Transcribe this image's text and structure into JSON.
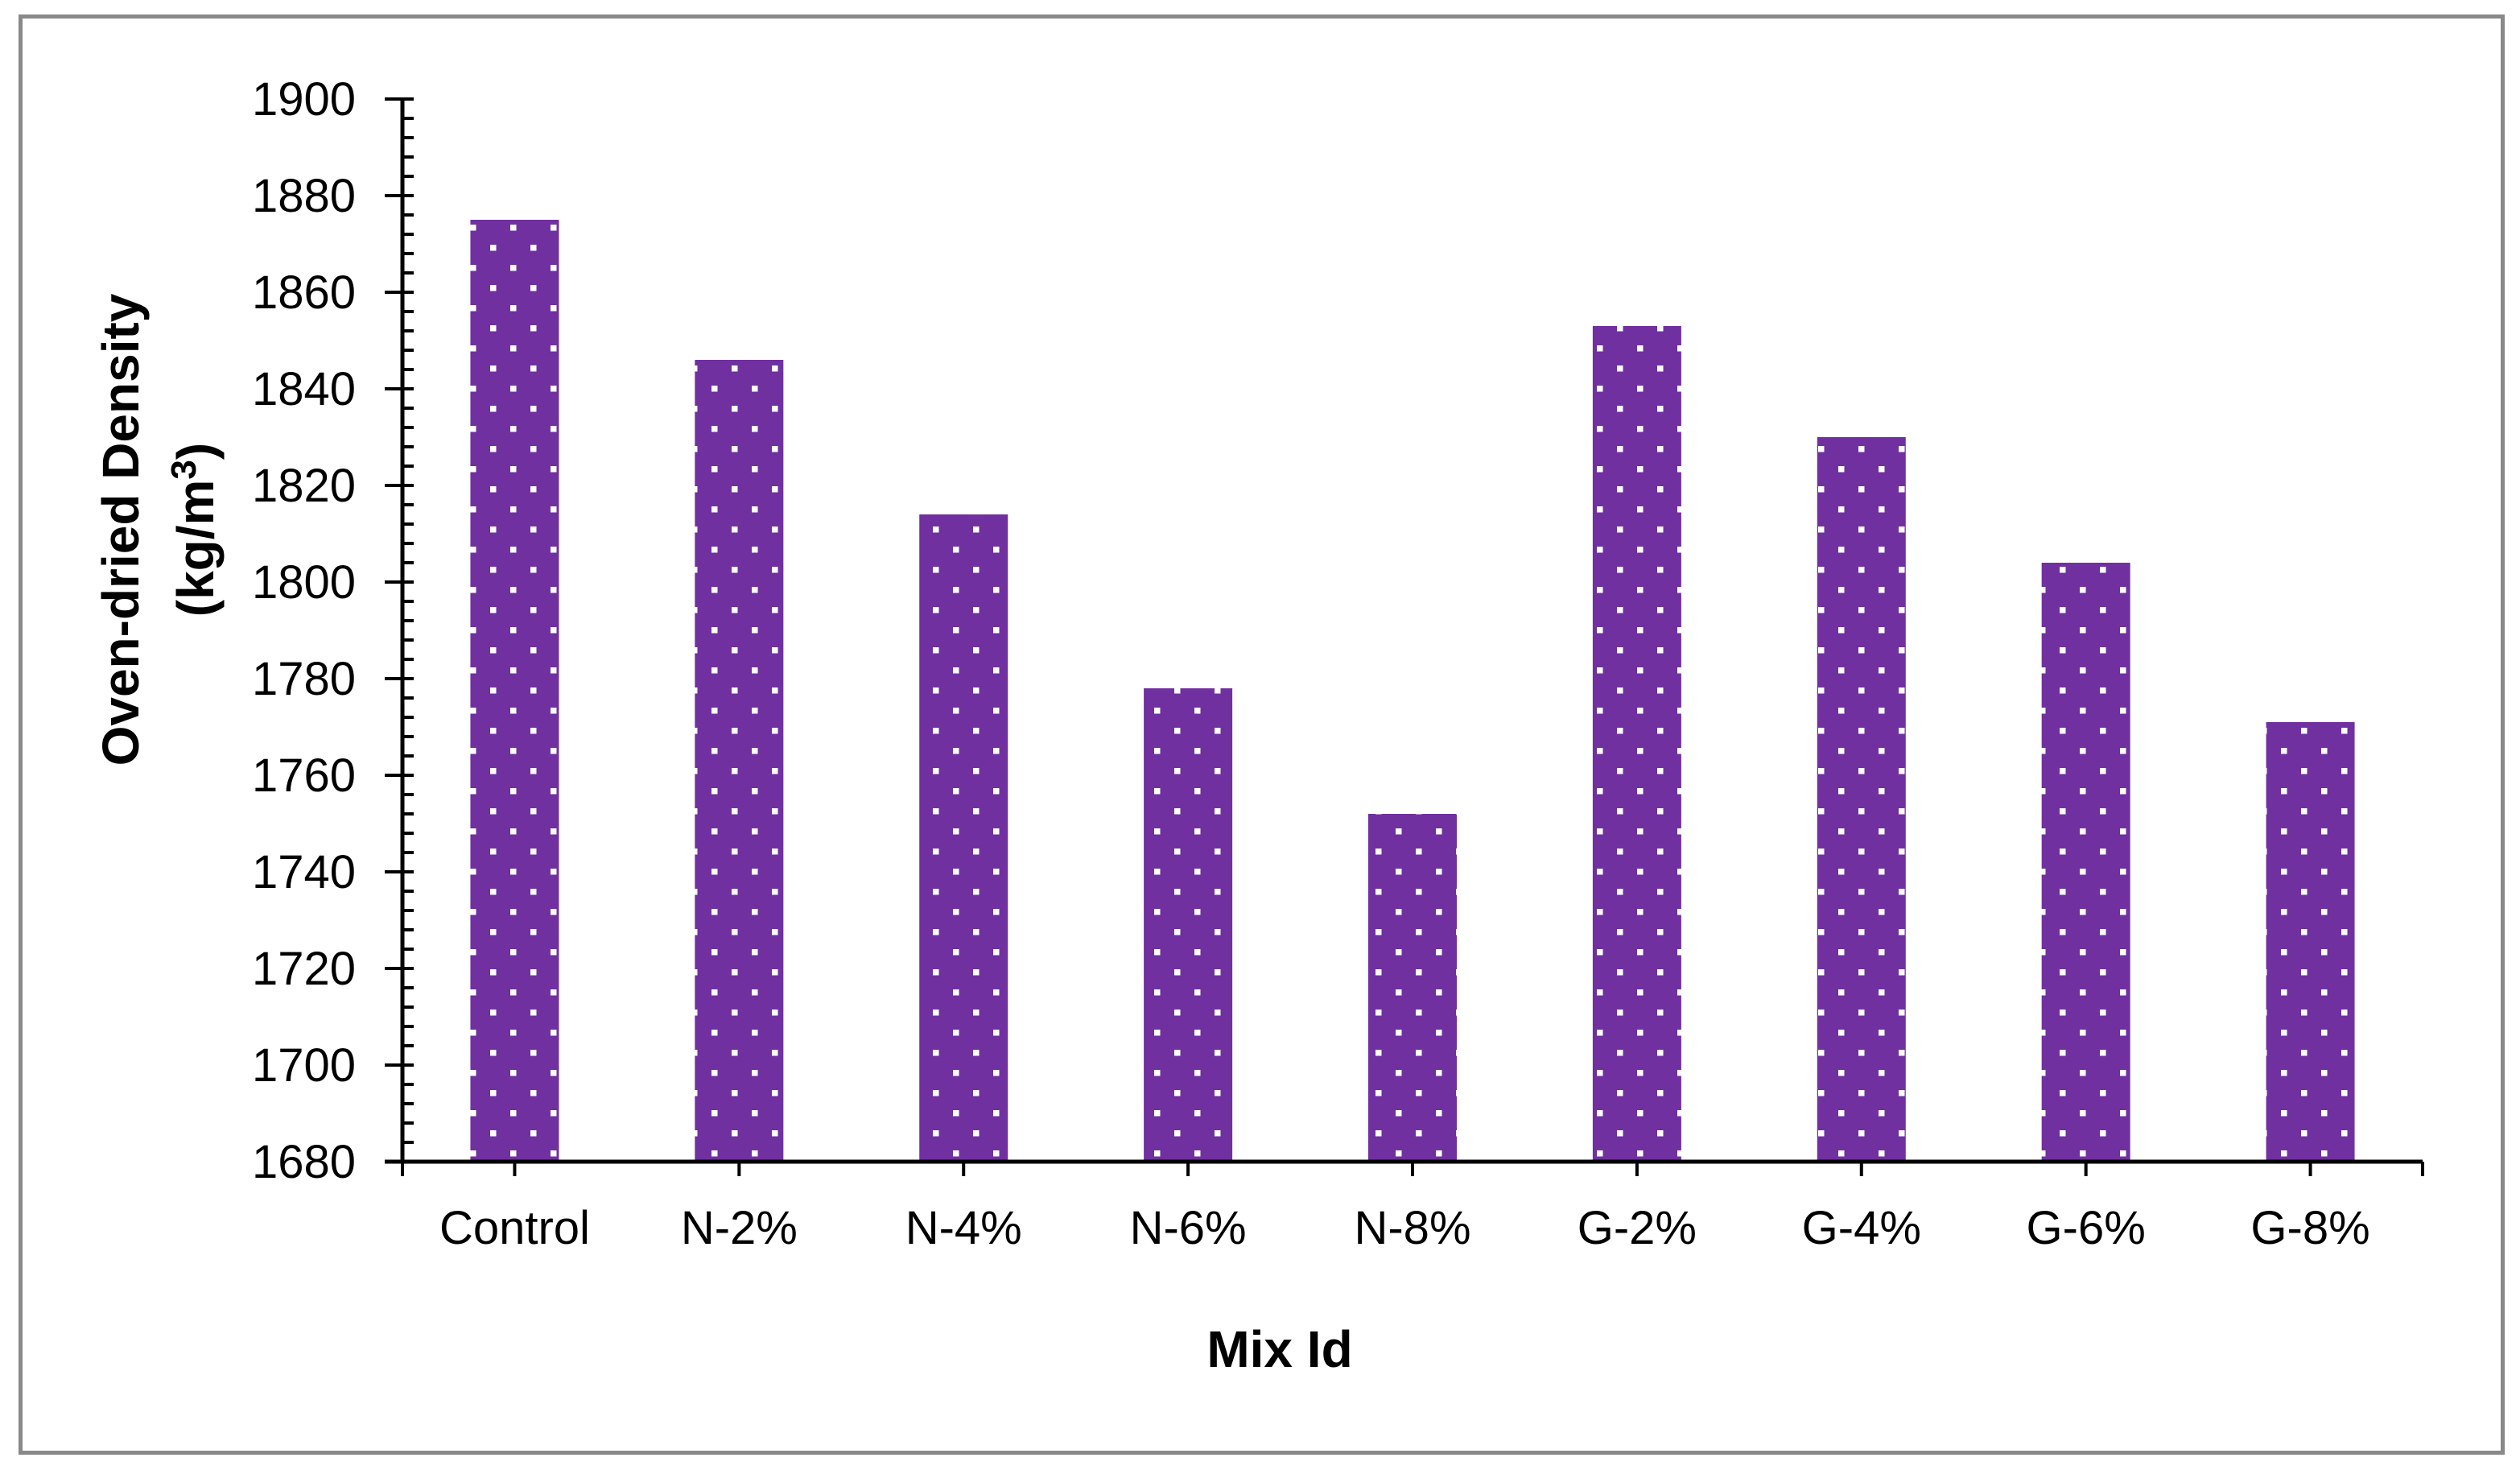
{
  "chart_data": {
    "type": "bar",
    "categories": [
      "Control",
      "N-2%",
      "N-4%",
      "N-6%",
      "N-8%",
      "G-2%",
      "G-4%",
      "G-6%",
      "G-8%"
    ],
    "values": [
      1875,
      1846,
      1814,
      1778,
      1752,
      1853,
      1830,
      1804,
      1771
    ],
    "xlabel": "Mix Id",
    "ylabel_line1": "Oven-dried Density",
    "ylabel_line2_pre": "(kg/m",
    "ylabel_line2_sup": "3",
    "ylabel_line2_post": ")",
    "ylim": [
      1680,
      1900
    ],
    "y_major_step": 20,
    "y_minor_step": 4,
    "grid": "off",
    "legend": "none",
    "bar_color": "#7030A0",
    "bar_pattern": "white-square-dots",
    "dot_color": "#FFFFFF",
    "axis_color": "#000000",
    "border_color": "#898989",
    "background_color": "#FFFFFF"
  }
}
